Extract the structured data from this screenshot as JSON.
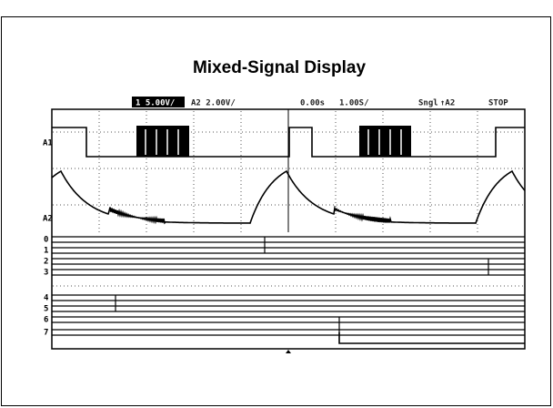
{
  "title": "Mixed-Signal Display",
  "status": {
    "ch1_scale": "1 5.00V/",
    "a2_scale": "A2 2.00V/",
    "time_offset": "0.00s",
    "time_scale": "1.00S/",
    "mode": "Sngl",
    "trigger": "↑A2",
    "state": "STOP"
  },
  "channels": {
    "analog": [
      "A1",
      "A2"
    ],
    "digital": [
      "0",
      "1",
      "2",
      "3",
      "4",
      "5",
      "6",
      "7"
    ]
  }
}
